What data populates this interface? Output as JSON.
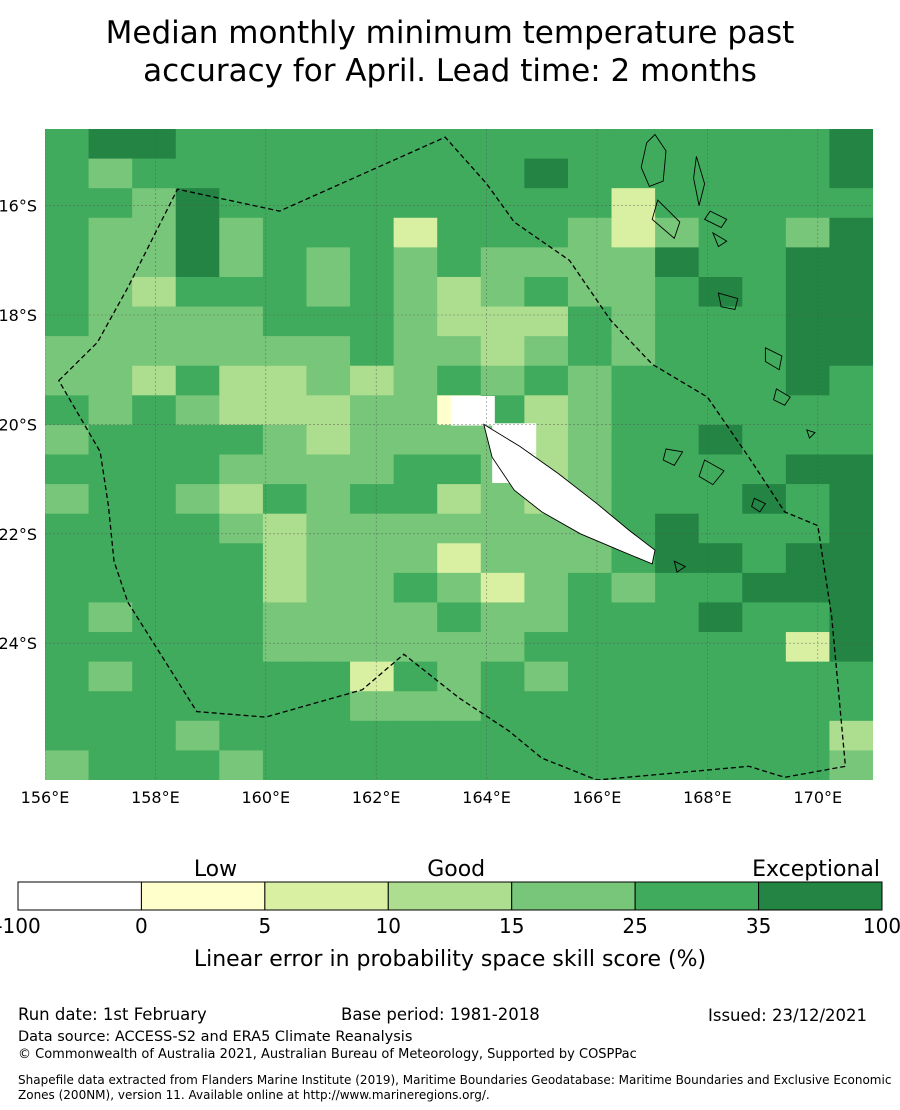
{
  "title": {
    "line1": "Median monthly minimum temperature past",
    "line2": "accuracy for April. Lead time: 2 months"
  },
  "map": {
    "lon_range": [
      156,
      171
    ],
    "lat_range": [
      -26.5,
      -14.6
    ],
    "lon_ticks": [
      "156°E",
      "158°E",
      "160°E",
      "162°E",
      "164°E",
      "166°E",
      "168°E",
      "170°E"
    ],
    "lat_ticks": [
      "16°S",
      "18°S",
      "20°S",
      "22°S",
      "24°S"
    ],
    "grid": true,
    "grid_values_rows_top_to_bottom": [
      [
        25,
        35,
        35,
        25,
        25,
        25,
        25,
        25,
        25,
        25,
        25,
        25,
        25,
        25,
        25,
        25,
        25,
        25,
        35
      ],
      [
        25,
        15,
        25,
        25,
        25,
        25,
        25,
        25,
        25,
        25,
        25,
        35,
        25,
        25,
        25,
        25,
        25,
        25,
        35
      ],
      [
        25,
        25,
        15,
        35,
        25,
        25,
        25,
        25,
        25,
        25,
        25,
        25,
        25,
        5,
        25,
        25,
        25,
        25,
        25
      ],
      [
        25,
        15,
        15,
        35,
        15,
        25,
        25,
        25,
        5,
        25,
        25,
        25,
        15,
        5,
        15,
        25,
        25,
        15,
        35
      ],
      [
        25,
        15,
        15,
        35,
        15,
        25,
        15,
        25,
        15,
        25,
        15,
        15,
        15,
        15,
        35,
        25,
        25,
        35,
        35
      ],
      [
        25,
        15,
        10,
        25,
        25,
        25,
        15,
        25,
        15,
        10,
        15,
        25,
        15,
        15,
        25,
        35,
        25,
        35,
        35
      ],
      [
        25,
        15,
        15,
        15,
        15,
        25,
        25,
        25,
        15,
        10,
        10,
        10,
        25,
        15,
        25,
        25,
        25,
        35,
        35
      ],
      [
        15,
        15,
        15,
        15,
        15,
        15,
        15,
        25,
        15,
        15,
        10,
        15,
        25,
        15,
        25,
        25,
        25,
        35,
        35
      ],
      [
        15,
        15,
        10,
        25,
        10,
        10,
        15,
        10,
        15,
        25,
        15,
        25,
        15,
        25,
        25,
        25,
        25,
        35,
        25
      ],
      [
        25,
        15,
        25,
        15,
        10,
        10,
        10,
        15,
        15,
        0,
        25,
        10,
        15,
        25,
        25,
        25,
        25,
        25,
        25
      ],
      [
        15,
        25,
        25,
        25,
        25,
        15,
        10,
        15,
        15,
        15,
        15,
        10,
        15,
        25,
        25,
        35,
        25,
        25,
        25
      ],
      [
        25,
        25,
        25,
        25,
        15,
        15,
        15,
        15,
        25,
        25,
        15,
        10,
        15,
        25,
        25,
        25,
        25,
        35,
        35
      ],
      [
        15,
        25,
        25,
        15,
        10,
        25,
        15,
        25,
        25,
        10,
        15,
        10,
        15,
        25,
        25,
        25,
        35,
        25,
        35
      ],
      [
        25,
        25,
        25,
        25,
        15,
        10,
        15,
        15,
        15,
        15,
        15,
        15,
        15,
        25,
        35,
        25,
        25,
        25,
        35
      ],
      [
        25,
        25,
        25,
        25,
        25,
        10,
        15,
        15,
        15,
        5,
        15,
        15,
        15,
        25,
        35,
        35,
        25,
        35,
        35
      ],
      [
        25,
        25,
        25,
        25,
        25,
        10,
        15,
        15,
        25,
        15,
        5,
        15,
        25,
        15,
        25,
        25,
        35,
        35,
        35
      ],
      [
        25,
        15,
        25,
        25,
        25,
        15,
        15,
        15,
        15,
        25,
        15,
        15,
        25,
        25,
        25,
        35,
        25,
        25,
        35
      ],
      [
        25,
        25,
        25,
        25,
        25,
        15,
        15,
        15,
        15,
        15,
        15,
        25,
        25,
        25,
        25,
        25,
        25,
        5,
        35
      ],
      [
        25,
        15,
        25,
        25,
        25,
        25,
        25,
        5,
        25,
        15,
        25,
        15,
        25,
        25,
        25,
        25,
        25,
        25,
        25
      ],
      [
        25,
        25,
        25,
        25,
        25,
        25,
        25,
        15,
        15,
        15,
        25,
        25,
        25,
        25,
        25,
        25,
        25,
        25,
        25
      ],
      [
        25,
        25,
        25,
        15,
        25,
        25,
        25,
        25,
        25,
        25,
        25,
        25,
        25,
        25,
        25,
        25,
        25,
        25,
        10
      ],
      [
        15,
        25,
        25,
        25,
        15,
        25,
        25,
        25,
        25,
        25,
        25,
        25,
        25,
        25,
        25,
        25,
        25,
        25,
        15
      ]
    ],
    "boundary_lonlat": [
      [
        156.25,
        -19.2
      ],
      [
        156.95,
        -18.5
      ],
      [
        157.5,
        -17.5
      ],
      [
        158.0,
        -16.5
      ],
      [
        158.4,
        -15.7
      ],
      [
        160.25,
        -16.1
      ],
      [
        163.25,
        -14.75
      ],
      [
        164.0,
        -15.6
      ],
      [
        164.5,
        -16.3
      ],
      [
        165.5,
        -17.0
      ],
      [
        166.25,
        -18.1
      ],
      [
        167.0,
        -18.9
      ],
      [
        168.0,
        -19.5
      ],
      [
        168.75,
        -20.6
      ],
      [
        169.4,
        -21.6
      ],
      [
        170.0,
        -21.85
      ],
      [
        170.25,
        -23.5
      ],
      [
        170.5,
        -26.25
      ],
      [
        169.4,
        -26.45
      ],
      [
        168.75,
        -26.25
      ],
      [
        166.0,
        -26.5
      ],
      [
        165.0,
        -26.1
      ],
      [
        164.4,
        -25.6
      ],
      [
        163.5,
        -25.0
      ],
      [
        162.5,
        -24.2
      ],
      [
        161.75,
        -24.85
      ],
      [
        160.0,
        -25.35
      ],
      [
        158.75,
        -25.25
      ],
      [
        157.5,
        -23.25
      ],
      [
        157.25,
        -22.5
      ],
      [
        157.15,
        -21.5
      ],
      [
        157.0,
        -20.5
      ]
    ],
    "land": [
      [
        [
          163.95,
          -20.0
        ],
        [
          164.6,
          -20.4
        ],
        [
          165.3,
          -20.9
        ],
        [
          166.0,
          -21.45
        ],
        [
          166.6,
          -21.95
        ],
        [
          167.05,
          -22.3
        ],
        [
          167.0,
          -22.55
        ],
        [
          166.4,
          -22.3
        ],
        [
          165.7,
          -22.0
        ],
        [
          165.0,
          -21.6
        ],
        [
          164.5,
          -21.2
        ],
        [
          164.1,
          -20.6
        ],
        [
          163.95,
          -20.0
        ]
      ],
      [
        [
          167.05,
          -14.7
        ],
        [
          167.25,
          -15.0
        ],
        [
          167.2,
          -15.55
        ],
        [
          166.95,
          -15.65
        ],
        [
          166.8,
          -15.3
        ],
        [
          166.9,
          -14.85
        ]
      ],
      [
        [
          167.8,
          -15.1
        ],
        [
          167.95,
          -15.6
        ],
        [
          167.85,
          -16.0
        ],
        [
          167.75,
          -15.5
        ]
      ],
      [
        [
          167.1,
          -15.9
        ],
        [
          167.5,
          -16.3
        ],
        [
          167.4,
          -16.6
        ],
        [
          167.0,
          -16.25
        ]
      ],
      [
        [
          168.05,
          -16.1
        ],
        [
          168.35,
          -16.25
        ],
        [
          168.25,
          -16.4
        ],
        [
          167.95,
          -16.25
        ]
      ],
      [
        [
          168.1,
          -16.5
        ],
        [
          168.35,
          -16.65
        ],
        [
          168.2,
          -16.75
        ]
      ],
      [
        [
          168.2,
          -17.6
        ],
        [
          168.55,
          -17.7
        ],
        [
          168.5,
          -17.9
        ],
        [
          168.25,
          -17.85
        ]
      ],
      [
        [
          169.05,
          -18.6
        ],
        [
          169.35,
          -18.75
        ],
        [
          169.3,
          -19.0
        ],
        [
          169.05,
          -18.85
        ]
      ],
      [
        [
          169.25,
          -19.35
        ],
        [
          169.5,
          -19.5
        ],
        [
          169.4,
          -19.65
        ],
        [
          169.2,
          -19.55
        ]
      ],
      [
        [
          169.8,
          -20.1
        ],
        [
          169.95,
          -20.15
        ],
        [
          169.85,
          -20.25
        ]
      ],
      [
        [
          167.25,
          -20.45
        ],
        [
          167.55,
          -20.5
        ],
        [
          167.4,
          -20.75
        ],
        [
          167.2,
          -20.65
        ]
      ],
      [
        [
          167.95,
          -20.65
        ],
        [
          168.3,
          -20.85
        ],
        [
          168.1,
          -21.1
        ],
        [
          167.85,
          -20.95
        ]
      ],
      [
        [
          168.85,
          -21.35
        ],
        [
          169.05,
          -21.45
        ],
        [
          168.95,
          -21.6
        ],
        [
          168.8,
          -21.5
        ]
      ],
      [
        [
          167.4,
          -22.5
        ],
        [
          167.6,
          -22.6
        ],
        [
          167.45,
          -22.7
        ]
      ]
    ],
    "missing_cells": [
      {
        "lon": 163.75,
        "lat": -19.75
      },
      {
        "lon": 164.5,
        "lat": -20.25
      },
      {
        "lon": 164.5,
        "lat": -20.8
      }
    ]
  },
  "legend": {
    "category_labels": [
      "Low",
      "Good",
      "Exceptional"
    ],
    "bins": [
      {
        "from": -100,
        "to": 0,
        "color": "#ffffff"
      },
      {
        "from": 0,
        "to": 5,
        "color": "#ffffcc"
      },
      {
        "from": 5,
        "to": 10,
        "color": "#d9f0a3"
      },
      {
        "from": 10,
        "to": 15,
        "color": "#addd8e"
      },
      {
        "from": 15,
        "to": 25,
        "color": "#78c679"
      },
      {
        "from": 25,
        "to": 35,
        "color": "#41ab5d"
      },
      {
        "from": 35,
        "to": 100,
        "color": "#238443"
      }
    ],
    "tick_labels": [
      "-100",
      "0",
      "5",
      "10",
      "15",
      "25",
      "35",
      "100"
    ],
    "axis_label": "Linear error in probability space skill score (%)"
  },
  "footer": {
    "run_date": "Run date: 1st February",
    "base_period": "Base period: 1981-2018",
    "issued": "Issued: 23/12/2021",
    "data_source": "Data source: ACCESS-S2 and ERA5 Climate Reanalysis",
    "copyright": "© Commonwealth of Australia 2021, Australian Bureau of Meteorology, Supported by COSPPac",
    "shapefile": "Shapefile data extracted from Flanders Marine Institute (2019), Maritime Boundaries Geodatabase: Maritime Boundaries and Exclusive Economic Zones (200NM), version 11. Available online at http://www.marineregions.org/."
  }
}
